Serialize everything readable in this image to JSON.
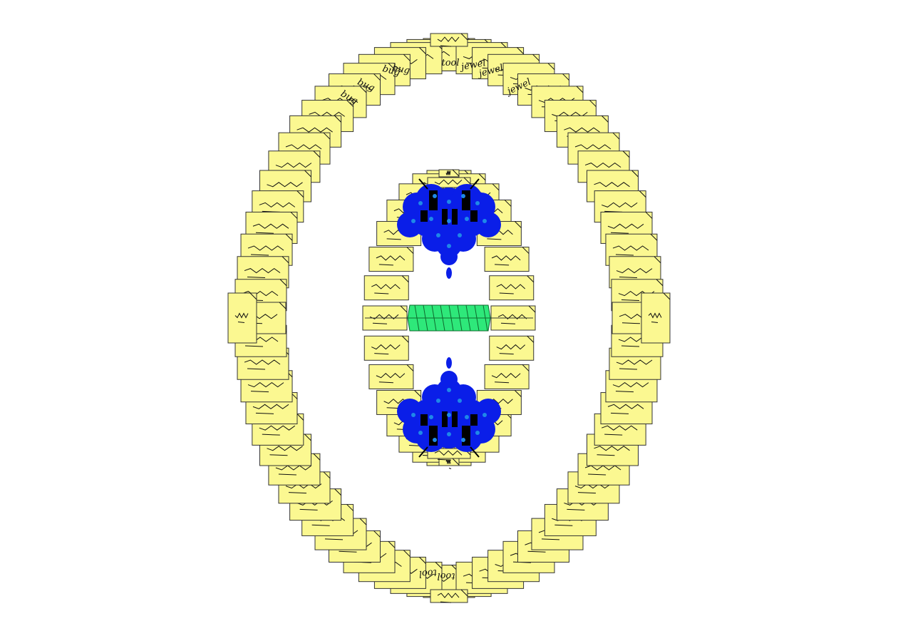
{
  "canvas": {
    "background": "#ffffff"
  },
  "outer_ring": {
    "card_color": "#fbf891",
    "outline_color": "#333333",
    "card_labels": [
      "bug",
      "bug",
      "bug",
      "bug",
      "tool",
      "tool",
      "tool",
      "jewel",
      "jewel",
      "jewel"
    ]
  },
  "inner_ring": {
    "card_color": "#fbf891",
    "outline_color": "#333333"
  },
  "beetles": {
    "body_color": "#0a1ee8",
    "spot_color": "#1e88e8",
    "leg_color": "#000000"
  },
  "gem": {
    "face_color": "#2ee87a",
    "edge_color": "#0f6a2e"
  }
}
